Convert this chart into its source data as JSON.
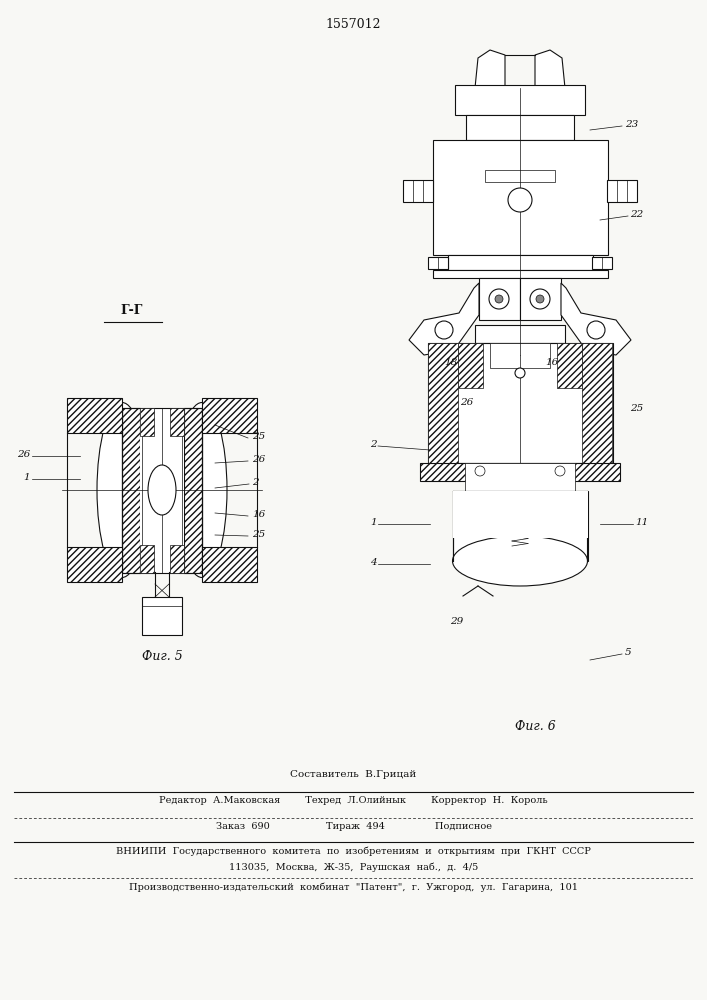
{
  "patent_number": "1557012",
  "bg": "#f8f8f5",
  "fig5_caption": "Фиг. 5",
  "fig6_caption": "Фиг. 6",
  "section_label": "Г-Г",
  "sestavitel": "Составитель  В.Грицай",
  "editor_line": "Редактор  А.Маковская        Техред  Л.Олийнык        Корректор  Н.  Король",
  "order_line": "Заказ  690                  Тираж  494                Подписное",
  "vnipi_line1": "ВНИИПИ  Государственного  комитета  по  изобретениям  и  открытиям  при  ГКНТ  СССР",
  "vnipi_line2": "113035,  Москва,  Ж-35,  Раушская  наб.,  д.  4/5",
  "factory_line": "Производственно-издательский  комбинат  \"Патент\",  г.  Ужгород,  ул.  Гагарина,  101"
}
